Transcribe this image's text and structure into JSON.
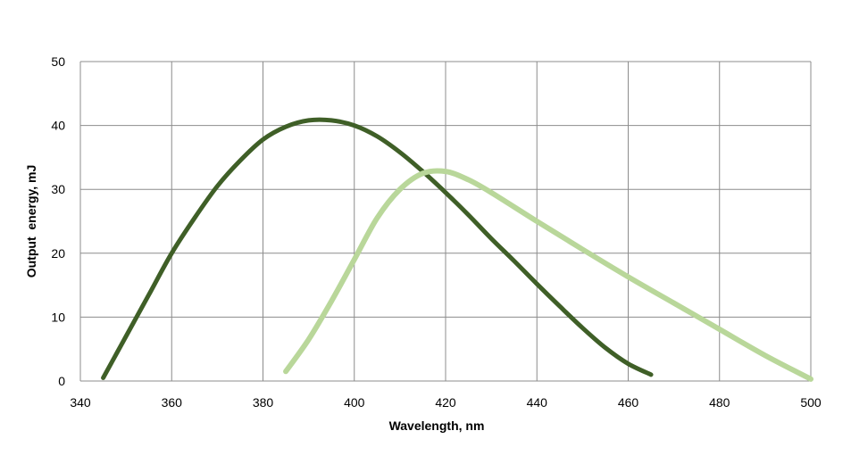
{
  "chart_data": {
    "type": "line",
    "title": "",
    "xlabel": "Wavelength, nm",
    "ylabel": "Output  energy, mJ",
    "xlim": [
      340,
      500
    ],
    "ylim": [
      0,
      50
    ],
    "x_ticks": [
      340,
      360,
      380,
      400,
      420,
      440,
      460,
      480,
      500
    ],
    "y_ticks": [
      0,
      10,
      20,
      30,
      40,
      50
    ],
    "grid": true,
    "legend": "none",
    "series": [
      {
        "color": "#3f5f27",
        "x": [
          345,
          350,
          355,
          360,
          365,
          370,
          375,
          380,
          385,
          390,
          395,
          400,
          405,
          410,
          415,
          420,
          425,
          430,
          435,
          440,
          445,
          450,
          455,
          460,
          465
        ],
        "values": [
          0.5,
          7,
          13.5,
          20,
          25.5,
          30.5,
          34.5,
          37.8,
          39.8,
          40.8,
          40.8,
          40,
          38.3,
          35.8,
          32.8,
          29.5,
          26,
          22.3,
          18.8,
          15.2,
          11.7,
          8.3,
          5.2,
          2.7,
          1
        ]
      },
      {
        "color": "#b9d79a",
        "x": [
          385,
          390,
          395,
          400,
          405,
          410,
          415,
          420,
          425,
          430,
          440,
          450,
          460,
          470,
          480,
          490,
          500
        ],
        "values": [
          1.5,
          6.5,
          12.5,
          19,
          25.5,
          30,
          32.5,
          32.8,
          31.5,
          29.5,
          25,
          20.6,
          16.3,
          12.2,
          8.1,
          4,
          0.3
        ]
      }
    ]
  }
}
